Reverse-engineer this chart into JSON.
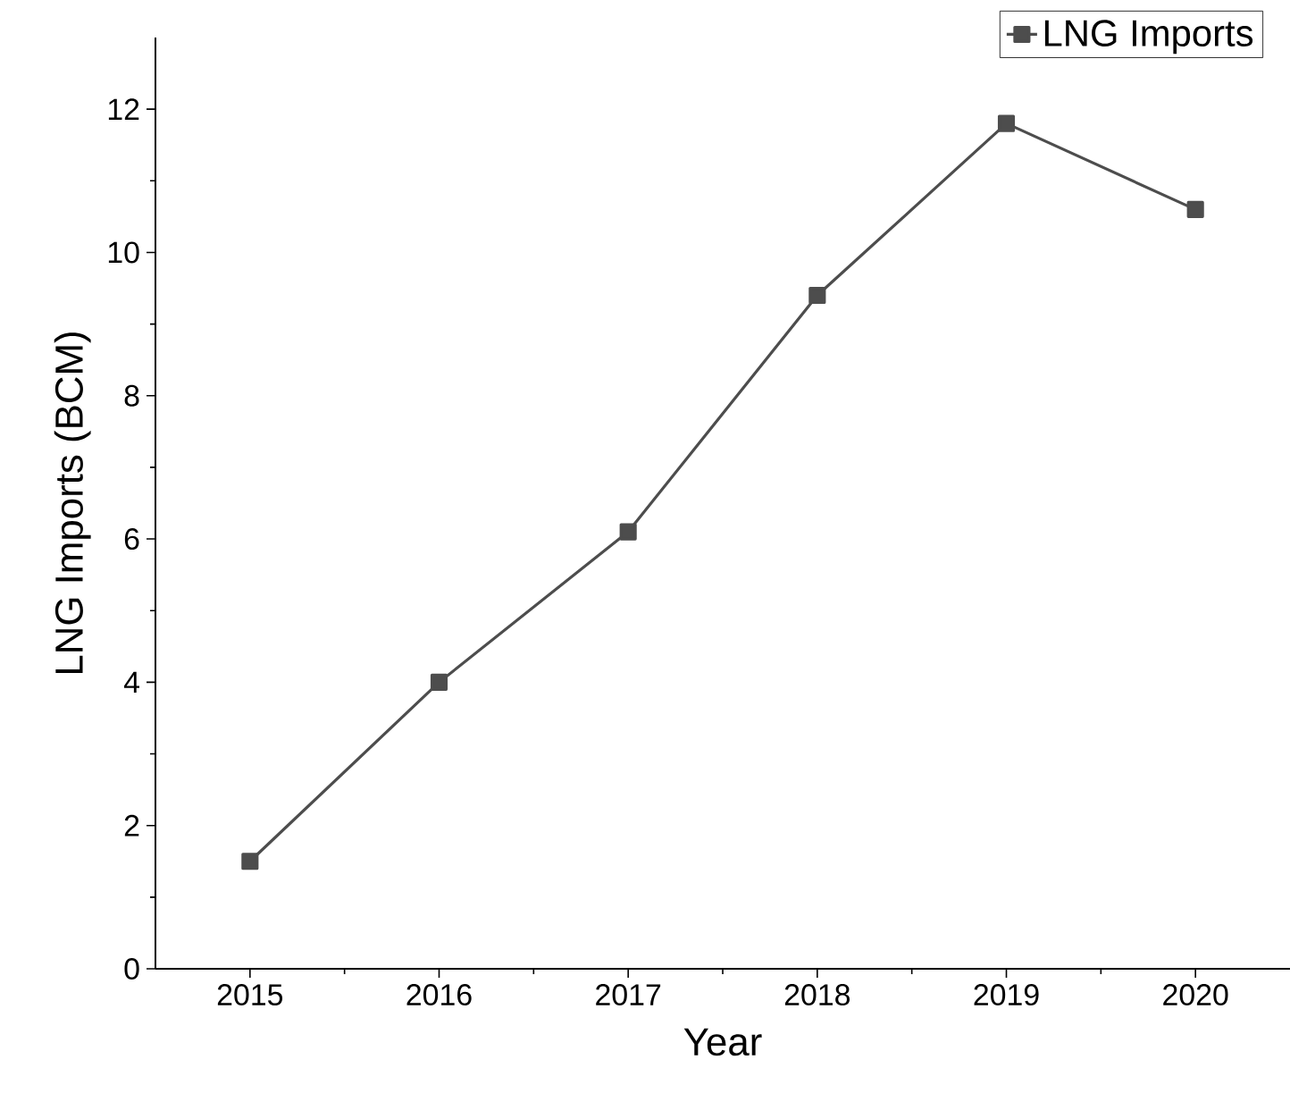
{
  "chart_data": {
    "type": "line",
    "xlabel": "Year",
    "ylabel": "LNG Imports (BCM)",
    "x": [
      2015,
      2016,
      2017,
      2018,
      2019,
      2020
    ],
    "series": [
      {
        "name": "LNG Imports",
        "color": "#4d4d4d",
        "values": [
          1.5,
          4.0,
          6.1,
          9.4,
          11.8,
          10.6
        ]
      }
    ],
    "xlim": [
      2014.5,
      2020.5
    ],
    "xticks": [
      2015,
      2016,
      2017,
      2018,
      2019,
      2020,
      {
        "value": 2015.5,
        "label": null
      },
      {
        "value": 2016.5,
        "label": null
      },
      {
        "value": 2017.5,
        "label": null
      },
      {
        "value": 2018.5,
        "label": null
      },
      {
        "value": 2019.5,
        "label": null
      }
    ],
    "ylim": [
      0,
      13
    ],
    "yticks": [
      0,
      2,
      4,
      6,
      8,
      10,
      12,
      {
        "value": 1,
        "label": null
      },
      {
        "value": 3,
        "label": null
      },
      {
        "value": 5,
        "label": null
      },
      {
        "value": 7,
        "label": null
      },
      {
        "value": 9,
        "label": null
      },
      {
        "value": 11,
        "label": null
      }
    ],
    "marker": "square",
    "line_style": "solid",
    "grid": false,
    "legend": "top right"
  }
}
